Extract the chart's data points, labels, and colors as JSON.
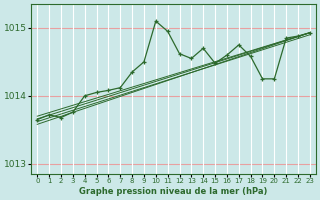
{
  "bg_color": "#cce8e8",
  "grid_color_h": "#e8a0a0",
  "grid_color_v": "#ffffff",
  "line_color": "#2d6a2d",
  "title": "Graphe pression niveau de la mer (hPa)",
  "xlim": [
    -0.5,
    23.5
  ],
  "ylim": [
    1012.85,
    1015.35
  ],
  "yticks": [
    1013,
    1014,
    1015
  ],
  "xticks": [
    0,
    1,
    2,
    3,
    4,
    5,
    6,
    7,
    8,
    9,
    10,
    11,
    12,
    13,
    14,
    15,
    16,
    17,
    18,
    19,
    20,
    21,
    22,
    23
  ],
  "series1": [
    1013.65,
    1013.72,
    1013.68,
    1013.76,
    1014.0,
    1014.05,
    1014.08,
    1014.12,
    1014.35,
    1014.5,
    1015.1,
    1014.95,
    1014.62,
    1014.55,
    1014.7,
    1014.48,
    1014.6,
    1014.75,
    1014.58,
    1014.25,
    1014.25,
    1014.85,
    1014.88,
    1014.93
  ],
  "linear_lines": [
    [
      1013.58,
      1014.93
    ],
    [
      1013.62,
      1014.9
    ],
    [
      1013.66,
      1014.93
    ],
    [
      1013.7,
      1014.93
    ]
  ]
}
